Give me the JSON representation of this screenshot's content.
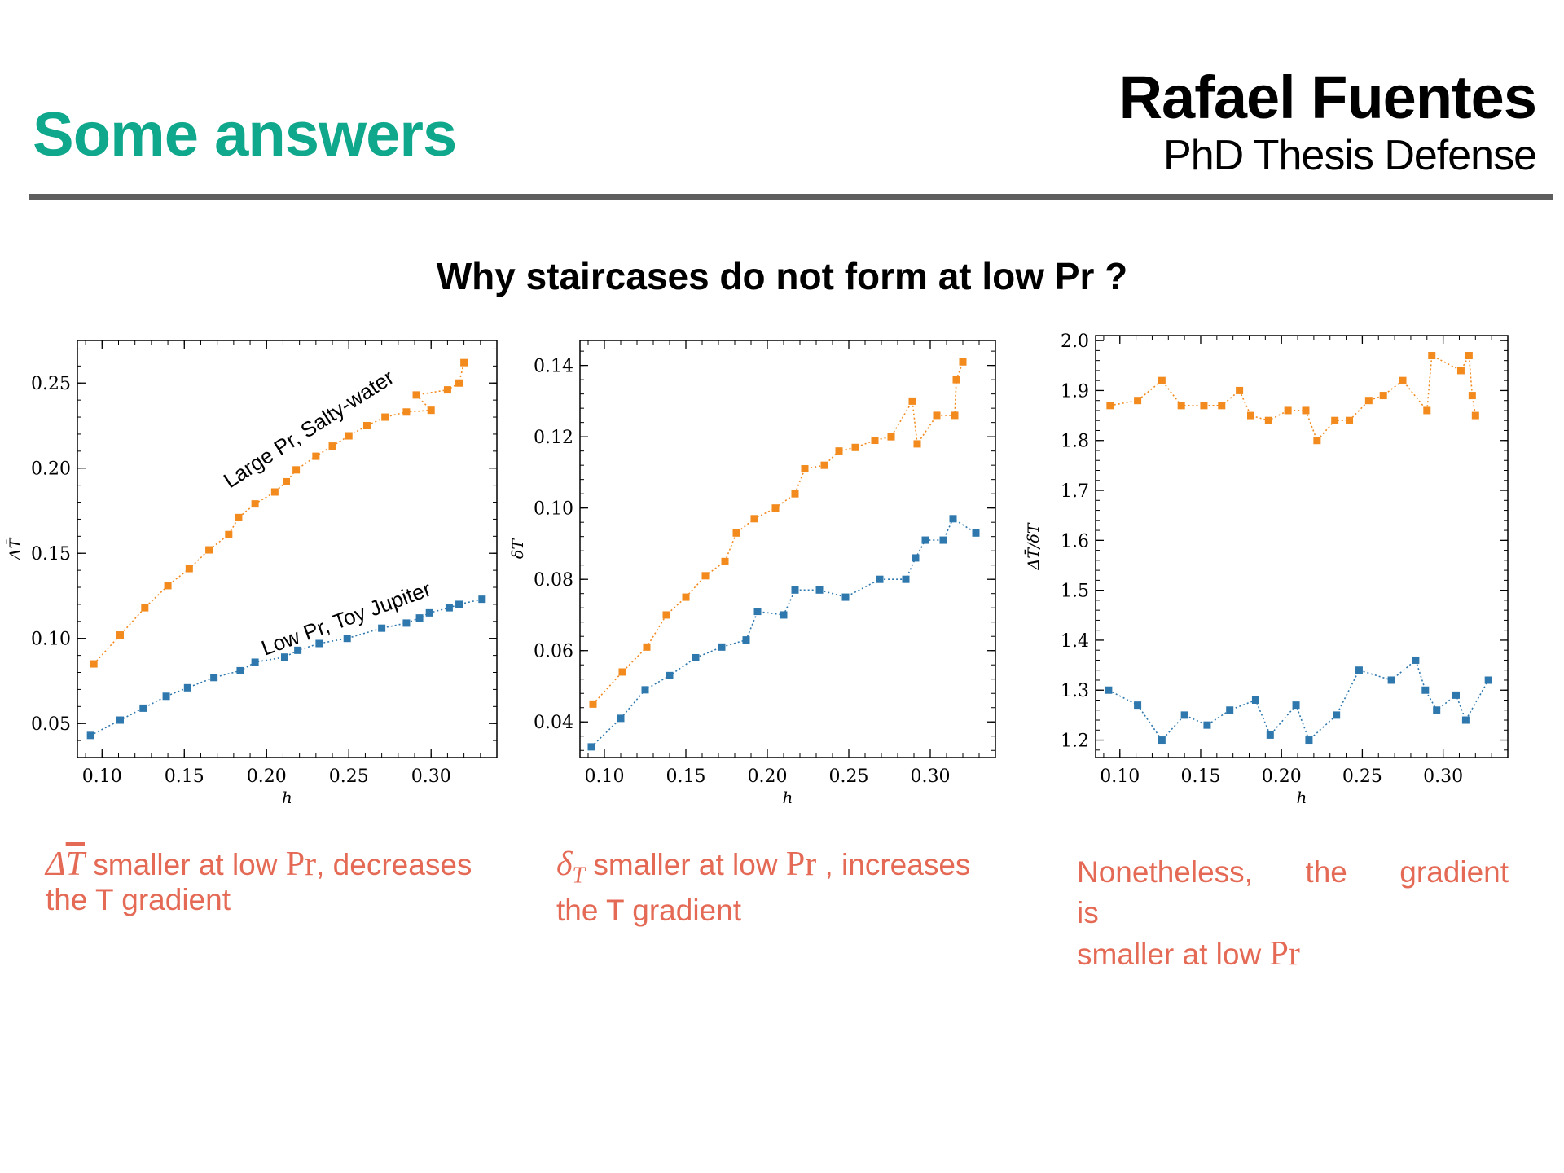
{
  "header": {
    "title": "Some answers",
    "author": "Rafael Fuentes",
    "subtitle": "PhD Thesis Defense"
  },
  "question": "Why staircases do not form at low Pr ?",
  "captions": {
    "c1_after": "smaller at low",
    "c1_pr": "Pr",
    "c1_tail": ", decreases",
    "c1_line2": "the T gradient",
    "c2_after": "smaller at low",
    "c2_pr": "Pr",
    "c2_tail": " , increases",
    "c2_line2": "the T gradient",
    "c3_line1": "Nonetheless, the gradient is",
    "c3_line2": "smaller at low",
    "c3_pr": "Pr"
  },
  "colors": {
    "orange": "#f28a1e",
    "blue": "#2f78ad",
    "caption": "#e46a55",
    "title": "#0fa88c"
  },
  "chart_data": [
    {
      "type": "line",
      "xlabel": "h",
      "ylabel": "ΔT̄",
      "xlim": [
        0.085,
        0.34
      ],
      "ylim": [
        0.03,
        0.275
      ],
      "xticks": [
        0.1,
        0.15,
        0.2,
        0.25,
        0.3
      ],
      "yticks": [
        0.05,
        0.1,
        0.15,
        0.2,
        0.25
      ],
      "xtick_labels": [
        "0.10",
        "0.15",
        "0.20",
        "0.25",
        "0.30"
      ],
      "ytick_labels": [
        "0.05",
        "0.10",
        "0.15",
        "0.20",
        "0.25"
      ],
      "annotations": [
        "Large Pr, Salty-water",
        "Low Pr, Toy Jupiter"
      ],
      "series": [
        {
          "name": "Large Pr, Salty-water",
          "color": "#f28a1e",
          "x": [
            0.095,
            0.111,
            0.126,
            0.14,
            0.153,
            0.165,
            0.177,
            0.183,
            0.193,
            0.205,
            0.212,
            0.218,
            0.23,
            0.24,
            0.25,
            0.261,
            0.272,
            0.285,
            0.3,
            0.291,
            0.31,
            0.317,
            0.32
          ],
          "y": [
            0.085,
            0.102,
            0.118,
            0.131,
            0.141,
            0.152,
            0.161,
            0.171,
            0.179,
            0.186,
            0.192,
            0.199,
            0.207,
            0.213,
            0.219,
            0.225,
            0.23,
            0.233,
            0.234,
            0.243,
            0.246,
            0.25,
            0.262
          ]
        },
        {
          "name": "Low Pr, Toy Jupiter",
          "color": "#2f78ad",
          "x": [
            0.093,
            0.111,
            0.125,
            0.139,
            0.152,
            0.168,
            0.184,
            0.193,
            0.211,
            0.219,
            0.232,
            0.249,
            0.27,
            0.285,
            0.293,
            0.299,
            0.311,
            0.317,
            0.331
          ],
          "y": [
            0.043,
            0.052,
            0.059,
            0.066,
            0.071,
            0.077,
            0.081,
            0.086,
            0.089,
            0.093,
            0.097,
            0.1,
            0.106,
            0.109,
            0.112,
            0.115,
            0.118,
            0.12,
            0.123
          ]
        }
      ]
    },
    {
      "type": "line",
      "xlabel": "h",
      "ylabel": "δT",
      "xlim": [
        0.085,
        0.34
      ],
      "ylim": [
        0.03,
        0.147
      ],
      "xticks": [
        0.1,
        0.15,
        0.2,
        0.25,
        0.3
      ],
      "yticks": [
        0.04,
        0.06,
        0.08,
        0.1,
        0.12,
        0.14
      ],
      "xtick_labels": [
        "0.10",
        "0.15",
        "0.20",
        "0.25",
        "0.30"
      ],
      "ytick_labels": [
        "0.04",
        "0.06",
        "0.08",
        "0.10",
        "0.12",
        "0.14"
      ],
      "series": [
        {
          "name": "",
          "color": "#f28a1e",
          "x": [
            0.093,
            0.111,
            0.126,
            0.138,
            0.15,
            0.162,
            0.174,
            0.181,
            0.192,
            0.205,
            0.217,
            0.223,
            0.235,
            0.244,
            0.254,
            0.266,
            0.276,
            0.289,
            0.292,
            0.304,
            0.315,
            0.316,
            0.32
          ],
          "y": [
            0.045,
            0.054,
            0.061,
            0.07,
            0.075,
            0.081,
            0.085,
            0.093,
            0.097,
            0.1,
            0.104,
            0.111,
            0.112,
            0.116,
            0.117,
            0.119,
            0.12,
            0.13,
            0.118,
            0.126,
            0.126,
            0.136,
            0.141
          ]
        },
        {
          "name": "",
          "color": "#2f78ad",
          "x": [
            0.092,
            0.11,
            0.125,
            0.14,
            0.156,
            0.172,
            0.187,
            0.194,
            0.21,
            0.217,
            0.232,
            0.248,
            0.269,
            0.285,
            0.291,
            0.297,
            0.308,
            0.314,
            0.328
          ],
          "y": [
            0.033,
            0.041,
            0.049,
            0.053,
            0.058,
            0.061,
            0.063,
            0.071,
            0.07,
            0.077,
            0.077,
            0.075,
            0.08,
            0.08,
            0.086,
            0.091,
            0.091,
            0.097,
            0.093
          ]
        }
      ]
    },
    {
      "type": "line",
      "xlabel": "h",
      "ylabel": "ΔT̄/δT",
      "xlim": [
        0.085,
        0.34
      ],
      "ylim": [
        1.165,
        2.01
      ],
      "xticks": [
        0.1,
        0.15,
        0.2,
        0.25,
        0.3
      ],
      "yticks": [
        1.2,
        1.3,
        1.4,
        1.5,
        1.6,
        1.7,
        1.8,
        1.9,
        2.0
      ],
      "xtick_labels": [
        "0.10",
        "0.15",
        "0.20",
        "0.25",
        "0.30"
      ],
      "ytick_labels": [
        "1.2",
        "1.3",
        "1.4",
        "1.5",
        "1.6",
        "1.7",
        "1.8",
        "1.9",
        "2.0"
      ],
      "series": [
        {
          "name": "",
          "color": "#f28a1e",
          "x": [
            0.094,
            0.111,
            0.126,
            0.138,
            0.152,
            0.163,
            0.174,
            0.181,
            0.192,
            0.204,
            0.215,
            0.222,
            0.233,
            0.242,
            0.254,
            0.263,
            0.275,
            0.29,
            0.293,
            0.311,
            0.316,
            0.318,
            0.32
          ],
          "y": [
            1.87,
            1.88,
            1.92,
            1.87,
            1.87,
            1.87,
            1.9,
            1.85,
            1.84,
            1.86,
            1.86,
            1.8,
            1.84,
            1.84,
            1.88,
            1.89,
            1.92,
            1.86,
            1.97,
            1.94,
            1.97,
            1.89,
            1.85
          ]
        },
        {
          "name": "",
          "color": "#2f78ad",
          "x": [
            0.093,
            0.111,
            0.126,
            0.14,
            0.154,
            0.168,
            0.184,
            0.193,
            0.209,
            0.217,
            0.234,
            0.248,
            0.268,
            0.283,
            0.289,
            0.296,
            0.308,
            0.314,
            0.328
          ],
          "y": [
            1.3,
            1.27,
            1.2,
            1.25,
            1.23,
            1.26,
            1.28,
            1.21,
            1.27,
            1.2,
            1.25,
            1.34,
            1.32,
            1.36,
            1.3,
            1.26,
            1.29,
            1.24,
            1.32
          ]
        }
      ]
    }
  ]
}
